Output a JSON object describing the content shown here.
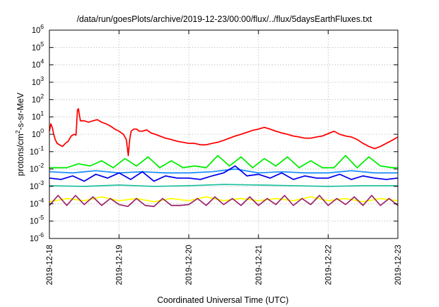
{
  "chart_data": {
    "type": "line",
    "title": "/data/run/goesPlots/archive/2019-12-23/00:00/flux/../flux/5daysEarthFluxes.txt",
    "xlabel": "Coordinated Universal Time (UTC)",
    "ylabel": {
      "base": "protons/cm",
      "sup": "2",
      "rest": "-s-sr-MeV"
    },
    "y_scale": "log",
    "ylim": [
      1e-06,
      1000000.0
    ],
    "y_ticks": [
      {
        "value": 1e-06,
        "base": "10",
        "exp": "-6"
      },
      {
        "value": 1e-05,
        "base": "10",
        "exp": "-5"
      },
      {
        "value": 0.0001,
        "base": "10",
        "exp": "-4"
      },
      {
        "value": 0.001,
        "base": "10",
        "exp": "-3"
      },
      {
        "value": 0.01,
        "base": "10",
        "exp": "-2"
      },
      {
        "value": 0.1,
        "base": "10",
        "exp": "-1"
      },
      {
        "value": 1,
        "base": "10",
        "exp": "0"
      },
      {
        "value": 10,
        "base": "10",
        "exp": "1"
      },
      {
        "value": 100,
        "base": "10",
        "exp": "2"
      },
      {
        "value": 1000,
        "base": "10",
        "exp": "3"
      },
      {
        "value": 10000,
        "base": "10",
        "exp": "4"
      },
      {
        "value": 100000,
        "base": "10",
        "exp": "5"
      },
      {
        "value": 1000000,
        "base": "10",
        "exp": "6"
      }
    ],
    "xlim": [
      "2019-12-18",
      "2019-12-23"
    ],
    "x_ticks": [
      "2019-12-18",
      "2019-12-19",
      "2019-12-20",
      "2019-12-21",
      "2019-12-22",
      "2019-12-23"
    ],
    "grid": true,
    "series": [
      {
        "color": "#ff0000",
        "x": [
          "2019-12-18 00:00",
          "2019-12-18 00:30",
          "2019-12-18 01:00",
          "2019-12-18 01:30",
          "2019-12-18 02:00",
          "2019-12-18 02:40",
          "2019-12-18 03:30",
          "2019-12-18 04:30",
          "2019-12-18 05:30",
          "2019-12-18 06:30",
          "2019-12-18 07:30",
          "2019-12-18 08:30",
          "2019-12-18 09:10",
          "2019-12-18 09:40",
          "2019-12-18 10:00",
          "2019-12-18 10:40",
          "2019-12-18 12:00",
          "2019-12-18 13:30",
          "2019-12-18 15:00",
          "2019-12-18 16:30",
          "2019-12-18 18:00",
          "2019-12-18 19:30",
          "2019-12-18 21:00",
          "2019-12-18 22:30",
          "2019-12-19 00:00",
          "2019-12-19 01:30",
          "2019-12-19 02:30",
          "2019-12-19 03:10",
          "2019-12-19 03:40",
          "2019-12-19 04:10",
          "2019-12-19 05:00",
          "2019-12-19 06:00",
          "2019-12-19 07:00",
          "2019-12-19 08:00",
          "2019-12-19 09:30",
          "2019-12-19 11:00",
          "2019-12-19 12:30",
          "2019-12-19 14:00",
          "2019-12-19 16:00",
          "2019-12-19 18:00",
          "2019-12-19 20:00",
          "2019-12-19 22:00",
          "2019-12-20 00:00",
          "2019-12-20 02:00",
          "2019-12-20 04:00",
          "2019-12-20 06:00",
          "2019-12-20 08:00",
          "2019-12-20 10:00",
          "2019-12-20 12:00",
          "2019-12-20 14:00",
          "2019-12-20 16:00",
          "2019-12-20 18:00",
          "2019-12-20 20:00",
          "2019-12-20 22:00",
          "2019-12-21 00:00",
          "2019-12-21 02:00",
          "2019-12-21 04:00",
          "2019-12-21 06:00",
          "2019-12-21 08:00",
          "2019-12-21 10:00",
          "2019-12-21 12:00",
          "2019-12-21 14:00",
          "2019-12-21 16:00",
          "2019-12-21 18:00",
          "2019-12-21 20:00",
          "2019-12-21 22:00",
          "2019-12-22 00:00",
          "2019-12-22 02:00",
          "2019-12-22 04:00",
          "2019-12-22 06:00",
          "2019-12-22 08:00",
          "2019-12-22 10:00",
          "2019-12-22 12:00",
          "2019-12-22 14:00",
          "2019-12-22 16:00",
          "2019-12-22 18:00",
          "2019-12-22 20:00",
          "2019-12-22 22:00",
          "2019-12-23 00:00"
        ],
        "values": [
          1.5,
          4,
          2.5,
          1,
          0.5,
          0.3,
          0.25,
          0.2,
          0.3,
          0.4,
          0.8,
          1,
          0.9,
          25,
          30,
          6,
          6,
          5,
          6,
          7,
          5,
          4,
          3,
          2,
          1.5,
          1,
          0.5,
          0.06,
          0.5,
          1.5,
          2,
          2,
          1.5,
          1.5,
          1.8,
          1.2,
          1,
          0.8,
          0.6,
          0.5,
          0.4,
          0.35,
          0.3,
          0.3,
          0.25,
          0.25,
          0.3,
          0.35,
          0.45,
          0.6,
          0.8,
          1,
          1.3,
          1.7,
          2,
          2.5,
          2,
          1.5,
          1.2,
          1,
          0.8,
          0.7,
          0.6,
          0.6,
          0.7,
          0.8,
          1.1,
          1.5,
          1,
          0.8,
          0.7,
          0.5,
          0.3,
          0.2,
          0.15,
          0.2,
          0.3,
          0.45,
          0.7
        ]
      },
      {
        "color": "#00ee00",
        "x": [
          "2019-12-18 00:00",
          "2019-12-18 06:00",
          "2019-12-18 10:00",
          "2019-12-18 14:00",
          "2019-12-18 18:00",
          "2019-12-18 22:00",
          "2019-12-19 02:00",
          "2019-12-19 06:00",
          "2019-12-19 10:00",
          "2019-12-19 14:00",
          "2019-12-19 18:00",
          "2019-12-19 22:00",
          "2019-12-20 02:00",
          "2019-12-20 06:00",
          "2019-12-20 10:00",
          "2019-12-20 14:00",
          "2019-12-20 18:00",
          "2019-12-20 22:00",
          "2019-12-21 02:00",
          "2019-12-21 06:00",
          "2019-12-21 10:00",
          "2019-12-21 14:00",
          "2019-12-21 18:00",
          "2019-12-21 22:00",
          "2019-12-22 02:00",
          "2019-12-22 06:00",
          "2019-12-22 10:00",
          "2019-12-22 14:00",
          "2019-12-22 18:00",
          "2019-12-22 22:00",
          "2019-12-23 00:00"
        ],
        "values": [
          0.012,
          0.012,
          0.02,
          0.015,
          0.03,
          0.012,
          0.04,
          0.015,
          0.05,
          0.012,
          0.03,
          0.012,
          0.015,
          0.012,
          0.06,
          0.015,
          0.05,
          0.012,
          0.04,
          0.015,
          0.05,
          0.012,
          0.03,
          0.012,
          0.012,
          0.06,
          0.012,
          0.05,
          0.015,
          0.012,
          0.012
        ]
      },
      {
        "color": "#1e90ff",
        "x": [
          "2019-12-18 00:00",
          "2019-12-18 08:00",
          "2019-12-18 16:00",
          "2019-12-19 00:00",
          "2019-12-19 08:00",
          "2019-12-19 16:00",
          "2019-12-20 00:00",
          "2019-12-20 08:00",
          "2019-12-20 16:00",
          "2019-12-21 00:00",
          "2019-12-21 08:00",
          "2019-12-21 16:00",
          "2019-12-22 00:00",
          "2019-12-22 08:00",
          "2019-12-22 16:00",
          "2019-12-23 00:00"
        ],
        "values": [
          0.007,
          0.006,
          0.008,
          0.006,
          0.007,
          0.006,
          0.006,
          0.007,
          0.01,
          0.006,
          0.007,
          0.006,
          0.006,
          0.008,
          0.006,
          0.006
        ]
      },
      {
        "color": "#0000ee",
        "x": [
          "2019-12-18 00:00",
          "2019-12-18 04:00",
          "2019-12-18 08:00",
          "2019-12-18 12:00",
          "2019-12-18 16:00",
          "2019-12-18 20:00",
          "2019-12-19 00:00",
          "2019-12-19 04:00",
          "2019-12-19 08:00",
          "2019-12-19 12:00",
          "2019-12-19 16:00",
          "2019-12-19 20:00",
          "2019-12-20 00:00",
          "2019-12-20 04:00",
          "2019-12-20 08:00",
          "2019-12-20 12:00",
          "2019-12-20 16:00",
          "2019-12-20 20:00",
          "2019-12-21 00:00",
          "2019-12-21 04:00",
          "2019-12-21 08:00",
          "2019-12-21 12:00",
          "2019-12-21 16:00",
          "2019-12-21 20:00",
          "2019-12-22 00:00",
          "2019-12-22 04:00",
          "2019-12-22 08:00",
          "2019-12-22 12:00",
          "2019-12-22 16:00",
          "2019-12-22 20:00",
          "2019-12-23 00:00"
        ],
        "values": [
          0.003,
          0.0025,
          0.004,
          0.002,
          0.005,
          0.003,
          0.006,
          0.0025,
          0.007,
          0.002,
          0.004,
          0.003,
          0.003,
          0.0025,
          0.004,
          0.006,
          0.015,
          0.004,
          0.005,
          0.003,
          0.006,
          0.0025,
          0.004,
          0.003,
          0.003,
          0.005,
          0.0025,
          0.004,
          0.003,
          0.0025,
          0.003
        ]
      },
      {
        "color": "#20c0a0",
        "x": [
          "2019-12-18 00:00",
          "2019-12-18 12:00",
          "2019-12-19 00:00",
          "2019-12-19 12:00",
          "2019-12-20 00:00",
          "2019-12-20 12:00",
          "2019-12-21 00:00",
          "2019-12-21 12:00",
          "2019-12-22 00:00",
          "2019-12-22 12:00",
          "2019-12-23 00:00"
        ],
        "values": [
          0.0011,
          0.001,
          0.0012,
          0.001,
          0.0011,
          0.0013,
          0.0012,
          0.0011,
          0.001,
          0.0011,
          0.0011
        ]
      },
      {
        "color": "#ffff00",
        "x": [
          "2019-12-18 00:00",
          "2019-12-18 06:00",
          "2019-12-18 12:00",
          "2019-12-18 18:00",
          "2019-12-19 00:00",
          "2019-12-19 06:00",
          "2019-12-19 12:00",
          "2019-12-19 18:00",
          "2019-12-20 00:00",
          "2019-12-20 06:00",
          "2019-12-20 12:00",
          "2019-12-20 18:00",
          "2019-12-21 00:00",
          "2019-12-21 06:00",
          "2019-12-21 12:00",
          "2019-12-21 18:00",
          "2019-12-22 00:00",
          "2019-12-22 06:00",
          "2019-12-22 12:00",
          "2019-12-22 18:00",
          "2019-12-23 00:00"
        ],
        "values": [
          0.00013,
          0.0002,
          0.00015,
          0.00025,
          0.00015,
          0.0002,
          0.00013,
          0.0002,
          0.00015,
          0.00025,
          0.00015,
          0.0002,
          0.00015,
          0.0002,
          0.00015,
          0.00025,
          0.00015,
          0.0002,
          0.00013,
          0.0002,
          0.00015
        ]
      },
      {
        "color": "#9b2a6e",
        "x": [
          "2019-12-18 00:00",
          "2019-12-18 03:00",
          "2019-12-18 06:00",
          "2019-12-18 09:00",
          "2019-12-18 12:00",
          "2019-12-18 15:00",
          "2019-12-18 18:00",
          "2019-12-18 21:00",
          "2019-12-19 00:00",
          "2019-12-19 03:00",
          "2019-12-19 06:00",
          "2019-12-19 09:00",
          "2019-12-19 12:00",
          "2019-12-19 15:00",
          "2019-12-19 18:00",
          "2019-12-19 21:00",
          "2019-12-20 00:00",
          "2019-12-20 03:00",
          "2019-12-20 06:00",
          "2019-12-20 09:00",
          "2019-12-20 12:00",
          "2019-12-20 15:00",
          "2019-12-20 18:00",
          "2019-12-20 21:00",
          "2019-12-21 00:00",
          "2019-12-21 03:00",
          "2019-12-21 06:00",
          "2019-12-21 09:00",
          "2019-12-21 12:00",
          "2019-12-21 15:00",
          "2019-12-21 18:00",
          "2019-12-21 21:00",
          "2019-12-22 00:00",
          "2019-12-22 03:00",
          "2019-12-22 06:00",
          "2019-12-22 09:00",
          "2019-12-22 12:00",
          "2019-12-22 15:00",
          "2019-12-22 18:00",
          "2019-12-22 21:00",
          "2019-12-23 00:00"
        ],
        "values": [
          8e-05,
          0.0003,
          8e-05,
          0.0003,
          9e-05,
          0.00025,
          8e-05,
          0.0002,
          9e-05,
          7e-05,
          0.0002,
          8e-05,
          7e-05,
          0.0002,
          8e-05,
          8e-05,
          9e-05,
          0.0002,
          8e-05,
          0.00025,
          9e-05,
          0.0002,
          8e-05,
          0.00025,
          8e-05,
          0.0002,
          9e-05,
          0.0003,
          8e-05,
          0.0002,
          9e-05,
          0.0003,
          8e-05,
          0.0002,
          9e-05,
          0.00025,
          8e-05,
          0.0003,
          8e-05,
          0.0002,
          8e-05
        ]
      }
    ]
  }
}
